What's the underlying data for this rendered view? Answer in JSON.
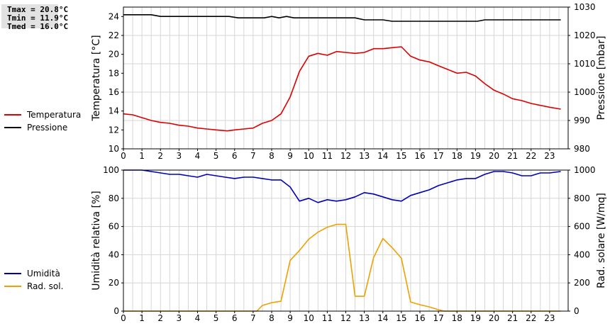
{
  "stats": {
    "tmax": "Tmax = 20.8°C",
    "tmin": "Tmin = 11.9°C",
    "tmed": "Tmed = 16.0°C"
  },
  "chart_data": [
    {
      "type": "line",
      "xlim": [
        0,
        24
      ],
      "x_ticks": [
        0,
        1,
        2,
        3,
        4,
        5,
        6,
        7,
        8,
        9,
        10,
        11,
        12,
        13,
        14,
        15,
        16,
        17,
        18,
        19,
        20,
        21,
        22,
        23
      ],
      "ylabel": "Temperatura [°C]",
      "ylim": [
        10,
        25
      ],
      "y_ticks": [
        10,
        12,
        14,
        16,
        18,
        20,
        22,
        24
      ],
      "y2label": "Pressione [mbar]",
      "y2lim": [
        980,
        1030
      ],
      "y2_ticks": [
        980,
        990,
        1000,
        1010,
        1020,
        1030
      ],
      "grid": true,
      "legend_position": "left",
      "series": [
        {
          "name": "Temperatura",
          "axis": "left",
          "color": "#dd0000",
          "points": [
            [
              0,
              13.7
            ],
            [
              0.5,
              13.6
            ],
            [
              1,
              13.3
            ],
            [
              1.5,
              13.0
            ],
            [
              2,
              12.8
            ],
            [
              2.5,
              12.7
            ],
            [
              3,
              12.5
            ],
            [
              3.5,
              12.4
            ],
            [
              4,
              12.2
            ],
            [
              4.5,
              12.1
            ],
            [
              5,
              12.0
            ],
            [
              5.6,
              11.9
            ],
            [
              6,
              12.0
            ],
            [
              6.5,
              12.1
            ],
            [
              7,
              12.2
            ],
            [
              7.5,
              12.7
            ],
            [
              8,
              13.0
            ],
            [
              8.5,
              13.7
            ],
            [
              9,
              15.5
            ],
            [
              9.5,
              18.2
            ],
            [
              10,
              19.8
            ],
            [
              10.5,
              20.1
            ],
            [
              11,
              19.9
            ],
            [
              11.5,
              20.3
            ],
            [
              12,
              20.2
            ],
            [
              12.5,
              20.1
            ],
            [
              13,
              20.2
            ],
            [
              13.5,
              20.6
            ],
            [
              14,
              20.6
            ],
            [
              14.5,
              20.7
            ],
            [
              15,
              20.8
            ],
            [
              15.5,
              19.8
            ],
            [
              16,
              19.4
            ],
            [
              16.5,
              19.2
            ],
            [
              17,
              18.8
            ],
            [
              17.5,
              18.4
            ],
            [
              18,
              18.0
            ],
            [
              18.5,
              18.1
            ],
            [
              19,
              17.7
            ],
            [
              19.5,
              16.9
            ],
            [
              20,
              16.2
            ],
            [
              20.5,
              15.8
            ],
            [
              21,
              15.3
            ],
            [
              21.5,
              15.1
            ],
            [
              22,
              14.8
            ],
            [
              22.5,
              14.6
            ],
            [
              23,
              14.4
            ],
            [
              23.6,
              14.2
            ]
          ]
        },
        {
          "name": "Pressione",
          "axis": "right",
          "color": "#000000",
          "points": [
            [
              0,
              1027.3
            ],
            [
              1.5,
              1027.3
            ],
            [
              2,
              1026.7
            ],
            [
              3,
              1026.7
            ],
            [
              5.7,
              1026.7
            ],
            [
              6.2,
              1026.2
            ],
            [
              7.6,
              1026.2
            ],
            [
              8,
              1026.7
            ],
            [
              8.4,
              1026.2
            ],
            [
              8.8,
              1026.7
            ],
            [
              9.2,
              1026.2
            ],
            [
              12.5,
              1026.2
            ],
            [
              13,
              1025.5
            ],
            [
              14,
              1025.5
            ],
            [
              14.5,
              1025.0
            ],
            [
              15,
              1025.0
            ],
            [
              19.1,
              1025.0
            ],
            [
              19.5,
              1025.5
            ],
            [
              23.6,
              1025.5
            ]
          ]
        }
      ]
    },
    {
      "type": "line",
      "xlim": [
        0,
        24
      ],
      "x_ticks": [
        0,
        1,
        2,
        3,
        4,
        5,
        6,
        7,
        8,
        9,
        10,
        11,
        12,
        13,
        14,
        15,
        16,
        17,
        18,
        19,
        20,
        21,
        22,
        23
      ],
      "ylabel": "Umidità relativa [%]",
      "ylim": [
        0,
        100
      ],
      "y_ticks": [
        0,
        20,
        40,
        60,
        80,
        100
      ],
      "y2label": "Rad. solare [W/mq]",
      "y2lim": [
        0,
        1000
      ],
      "y2_ticks": [
        0,
        200,
        400,
        600,
        800,
        1000
      ],
      "grid": true,
      "legend_position": "left",
      "series": [
        {
          "name": "Umidità",
          "axis": "left",
          "color": "#0000bb",
          "points": [
            [
              0,
              100
            ],
            [
              1,
              100
            ],
            [
              1.5,
              99
            ],
            [
              2,
              98
            ],
            [
              2.5,
              97
            ],
            [
              3,
              97
            ],
            [
              3.5,
              96
            ],
            [
              4,
              95
            ],
            [
              4.5,
              97
            ],
            [
              5,
              96
            ],
            [
              5.5,
              95
            ],
            [
              6,
              94
            ],
            [
              6.5,
              95
            ],
            [
              7,
              95
            ],
            [
              7.5,
              94
            ],
            [
              8,
              93
            ],
            [
              8.5,
              93
            ],
            [
              9,
              88
            ],
            [
              9.5,
              78
            ],
            [
              10,
              80
            ],
            [
              10.5,
              77
            ],
            [
              11,
              79
            ],
            [
              11.5,
              78
            ],
            [
              12,
              79
            ],
            [
              12.5,
              81
            ],
            [
              13,
              84
            ],
            [
              13.5,
              83
            ],
            [
              14,
              81
            ],
            [
              14.5,
              79
            ],
            [
              15,
              78
            ],
            [
              15.5,
              82
            ],
            [
              16,
              84
            ],
            [
              16.5,
              86
            ],
            [
              17,
              89
            ],
            [
              17.5,
              91
            ],
            [
              18,
              93
            ],
            [
              18.5,
              94
            ],
            [
              19,
              94
            ],
            [
              19.5,
              97
            ],
            [
              20,
              99
            ],
            [
              20.5,
              99
            ],
            [
              21,
              98
            ],
            [
              21.5,
              96
            ],
            [
              22,
              96
            ],
            [
              22.5,
              98
            ],
            [
              23,
              98
            ],
            [
              23.6,
              99
            ]
          ]
        },
        {
          "name": "Rad. sol.",
          "axis": "right",
          "color": "#f0a000",
          "points": [
            [
              0,
              0
            ],
            [
              7.2,
              0
            ],
            [
              7.5,
              40
            ],
            [
              8,
              60
            ],
            [
              8.5,
              70
            ],
            [
              9,
              360
            ],
            [
              9.5,
              430
            ],
            [
              10,
              510
            ],
            [
              10.5,
              560
            ],
            [
              11,
              595
            ],
            [
              11.5,
              615
            ],
            [
              12,
              615
            ],
            [
              12.5,
              105
            ],
            [
              13,
              105
            ],
            [
              13.5,
              380
            ],
            [
              14,
              515
            ],
            [
              14.5,
              450
            ],
            [
              15,
              375
            ],
            [
              15.5,
              65
            ],
            [
              16,
              45
            ],
            [
              16.5,
              30
            ],
            [
              17,
              10
            ],
            [
              17.3,
              0
            ],
            [
              23.6,
              0
            ]
          ]
        }
      ]
    }
  ]
}
